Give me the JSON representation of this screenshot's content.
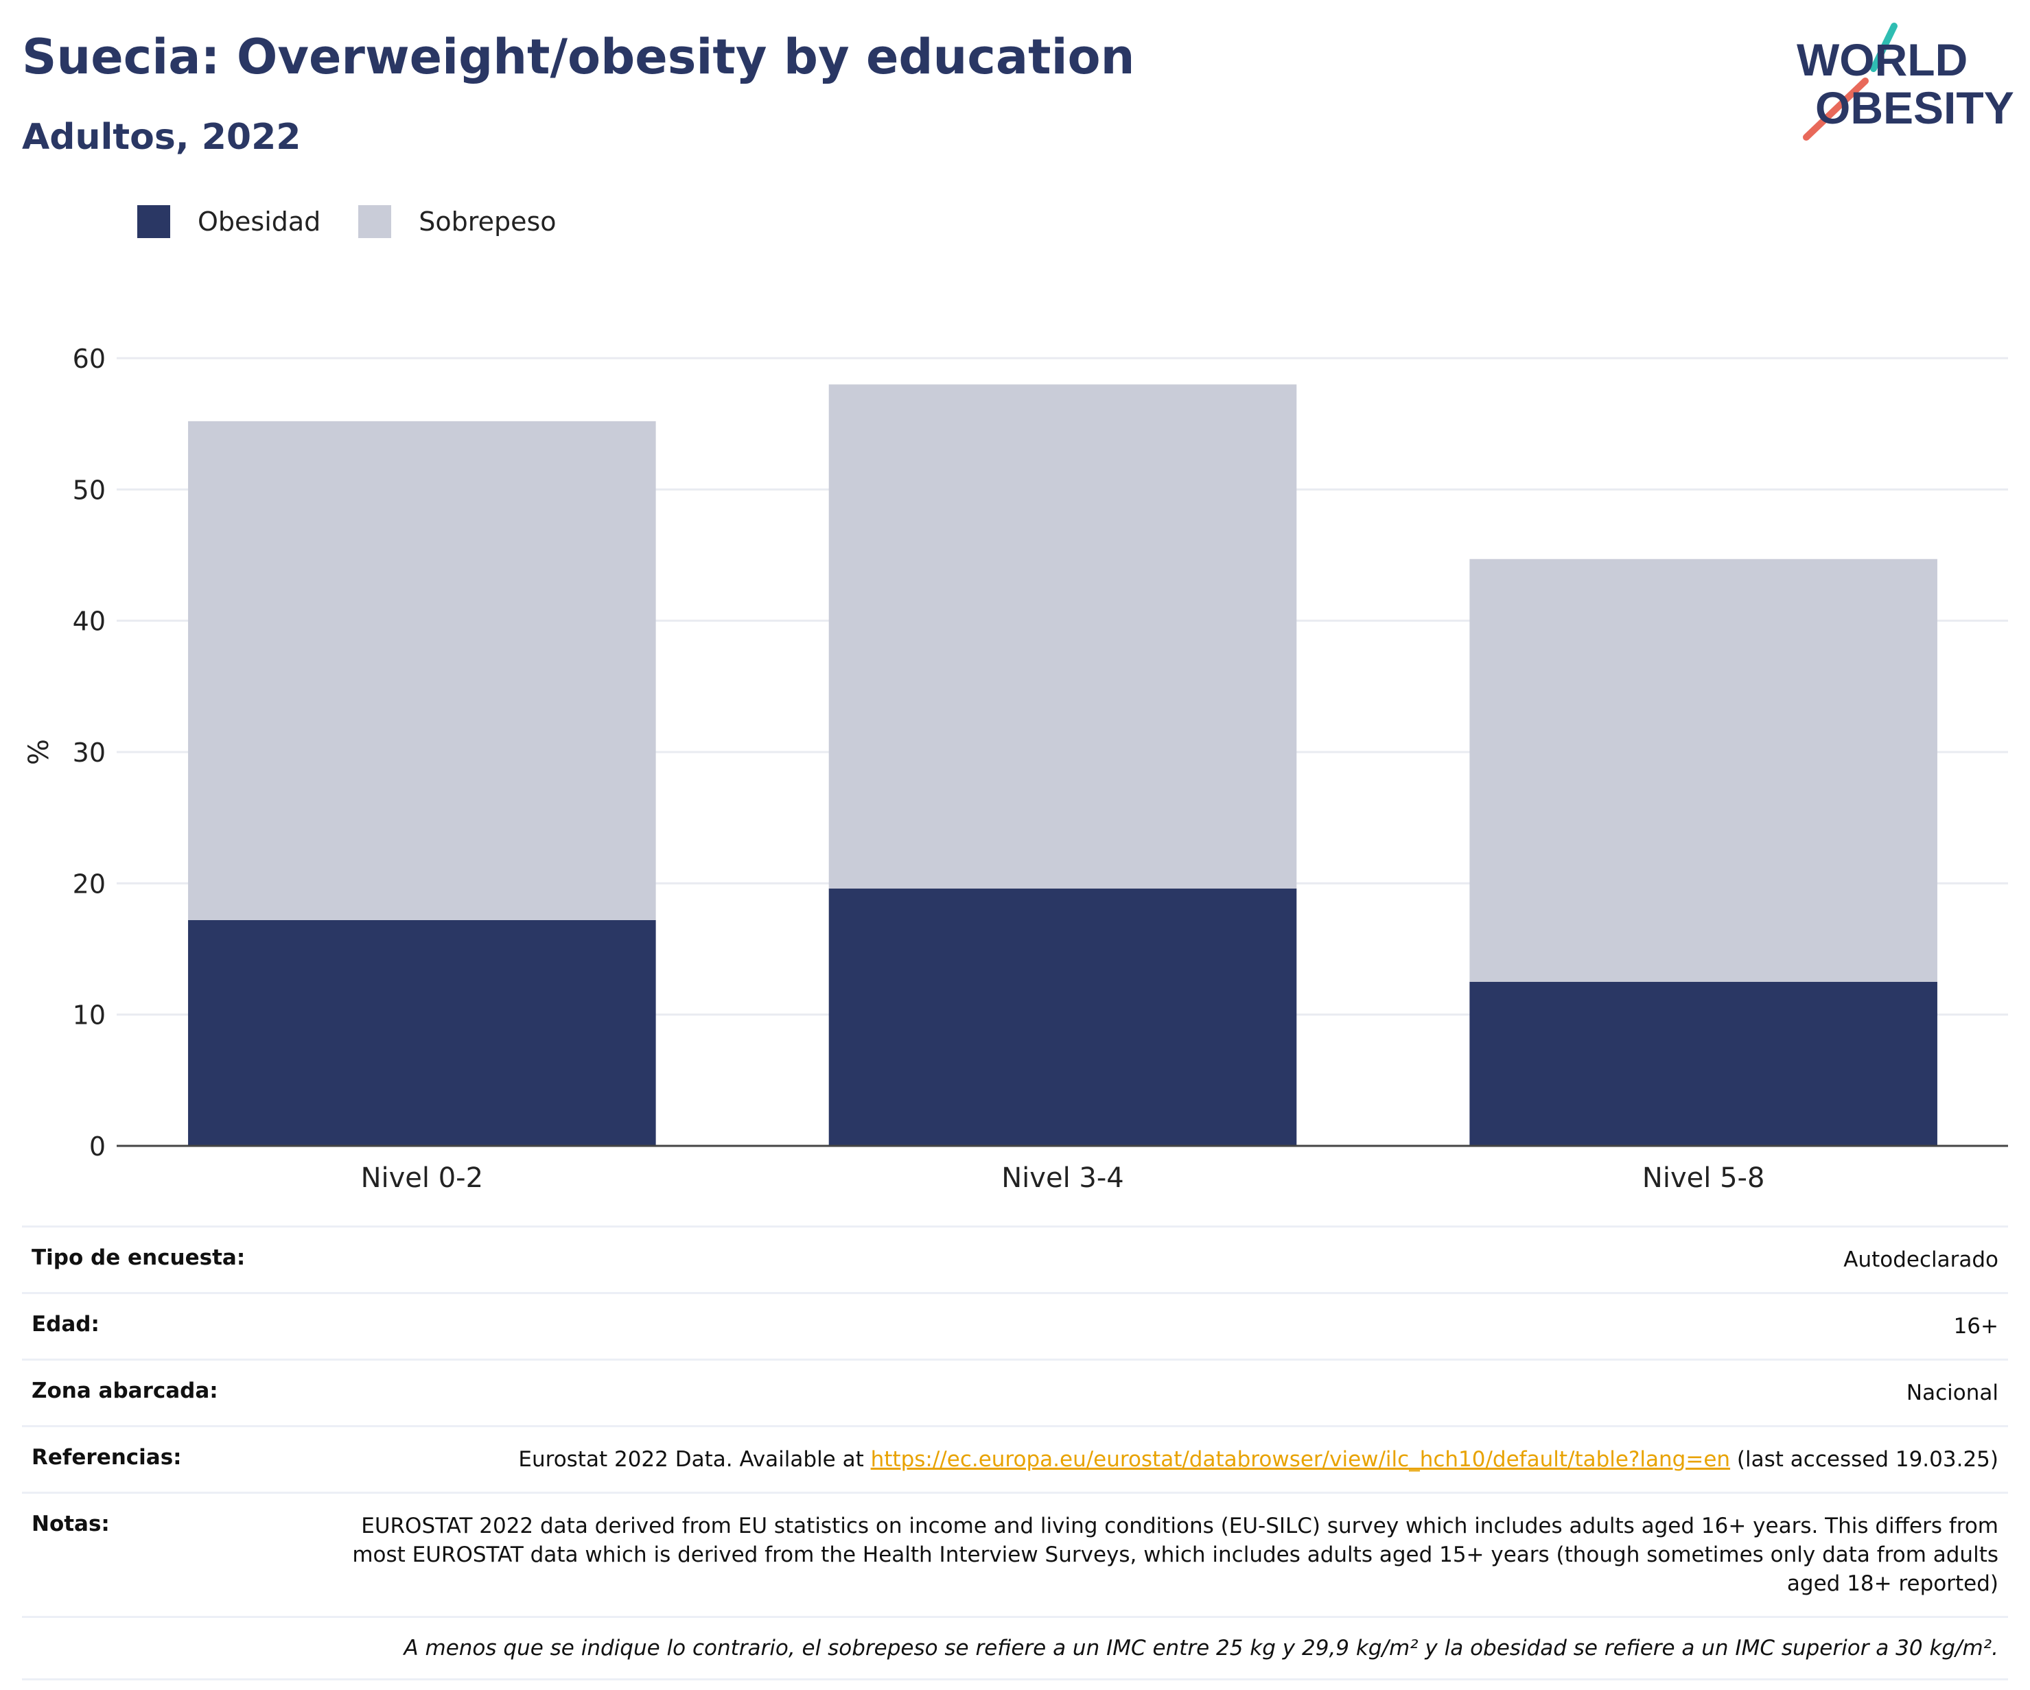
{
  "header": {
    "title": "Suecia: Overweight/obesity by education",
    "subtitle": "Adultos, 2022",
    "logo_text_line1": "WORLD",
    "logo_text_line2": "OBESITY"
  },
  "colors": {
    "title": "#2a3764",
    "obesidad": "#2a3764",
    "sobrepeso": "#c9ccd8",
    "link": "#e8a200",
    "logo_teal": "#2fbdb2",
    "logo_coral": "#e8695a"
  },
  "legend": {
    "items": [
      {
        "label": "Obesidad",
        "color": "#2a3764"
      },
      {
        "label": "Sobrepeso",
        "color": "#c9ccd8"
      }
    ],
    "placement": "top-left"
  },
  "chart_data": {
    "type": "bar",
    "stacked": true,
    "categories": [
      "Nivel 0-2",
      "Nivel 3-4",
      "Nivel 5-8"
    ],
    "series": [
      {
        "name": "Obesidad",
        "values": [
          17.2,
          19.6,
          12.5
        ],
        "color": "#2a3764"
      },
      {
        "name": "Sobrepeso",
        "values": [
          38.0,
          38.4,
          32.2
        ],
        "color": "#c9ccd8"
      }
    ],
    "ylabel": "%",
    "ylim": [
      0,
      60
    ],
    "yticks": [
      0,
      10,
      20,
      30,
      40,
      50,
      60
    ],
    "grid": true
  },
  "info": {
    "survey_label": "Tipo de encuesta:",
    "survey_value": "Autodeclarado",
    "age_label": "Edad:",
    "age_value": "16+",
    "area_label": "Zona abarcada:",
    "area_value": "Nacional",
    "refs_label": "Referencias:",
    "refs_prefix": "Eurostat 2022 Data. Available at",
    "refs_link": "https://ec.europa.eu/eurostat/databrowser/view/ilc_hch10/default/table?lang=en",
    "refs_suffix": "(last accessed 19.03.25)",
    "notes_label": "Notas:",
    "notes_value": "EUROSTAT 2022 data derived from EU statistics on income and living conditions (EU-SILC) survey which includes adults aged 16+ years. This differs from most EUROSTAT data which is derived from the Health Interview Surveys, which includes adults aged 15+ years (though sometimes only data from adults aged 18+ reported)",
    "footnote": "A menos que se indique lo contrario, el sobrepeso se refiere a un IMC entre 25 kg y 29,9 kg/m² y la obesidad se refiere a un IMC superior a 30 kg/m²."
  }
}
